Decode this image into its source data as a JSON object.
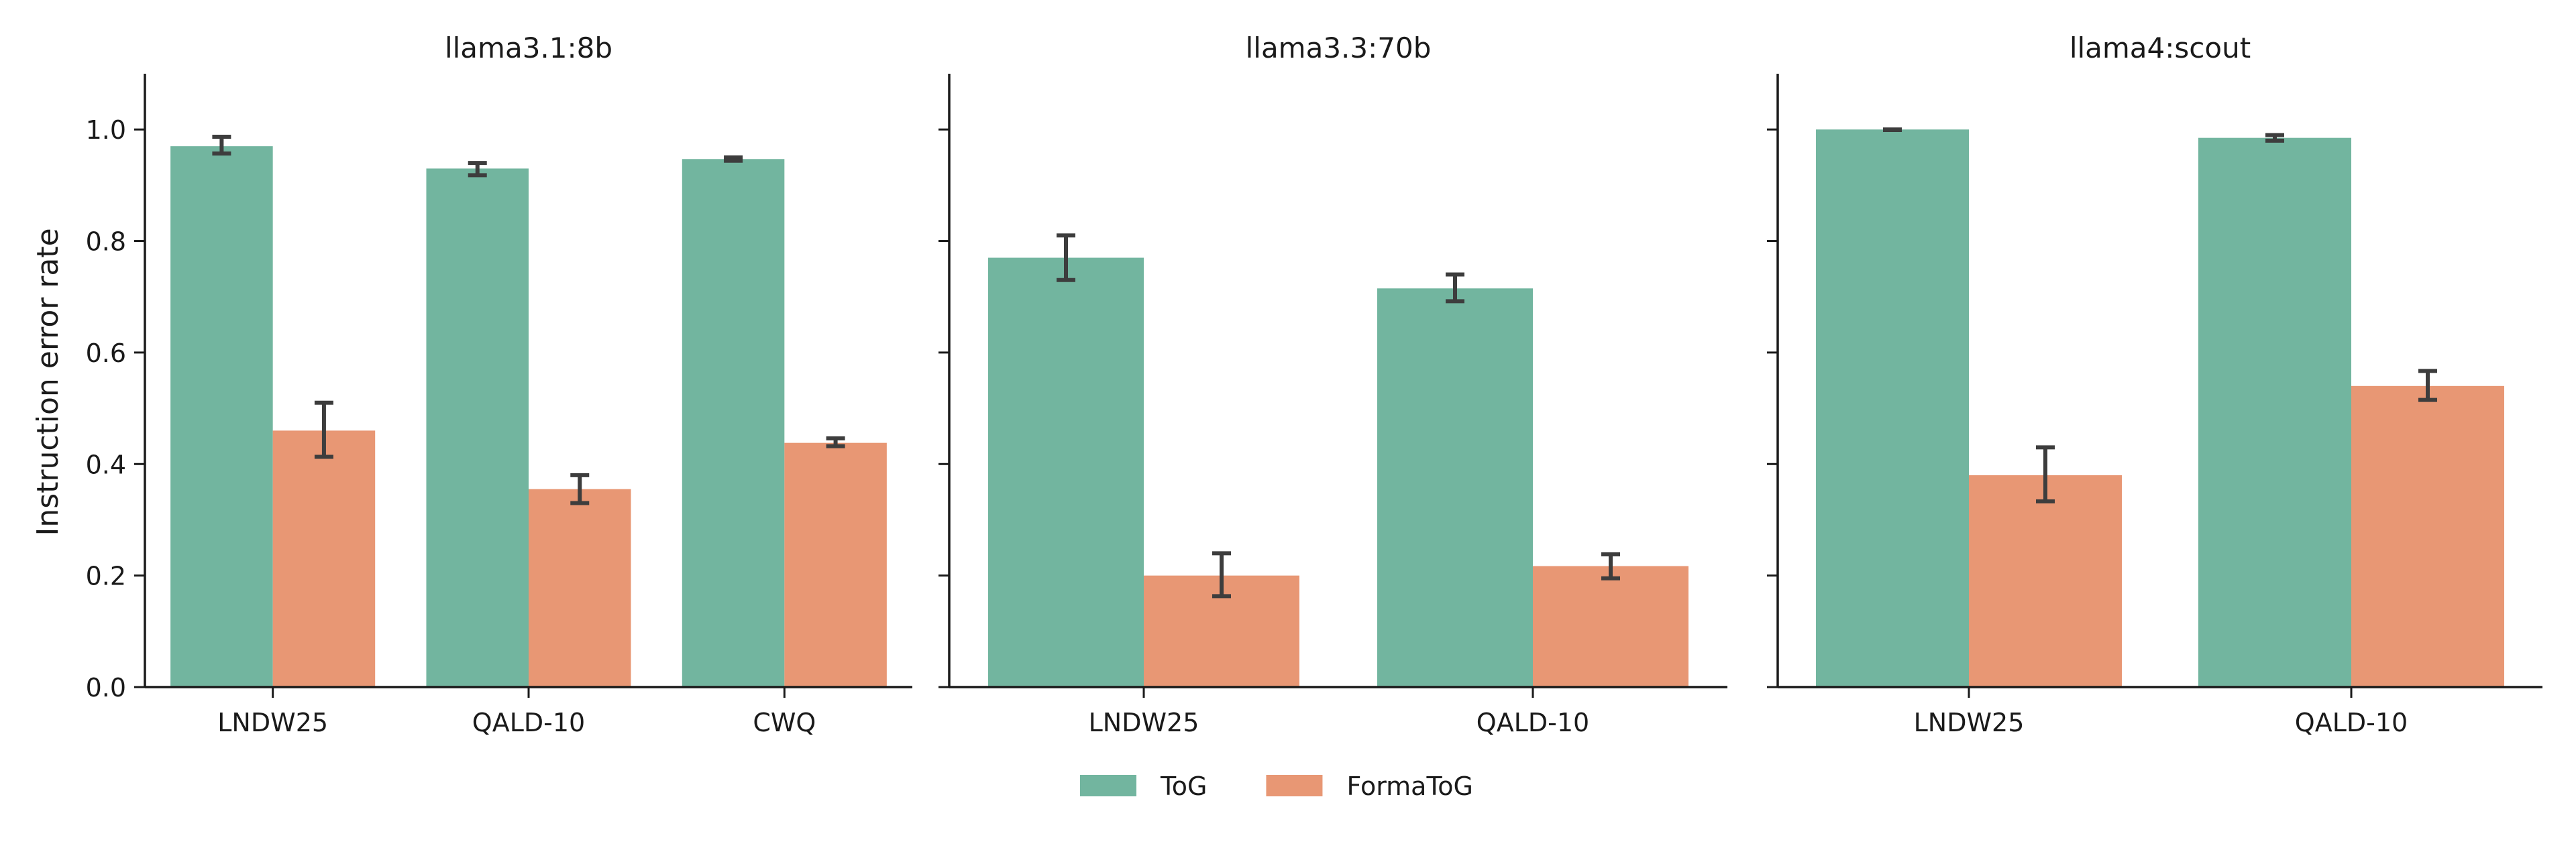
{
  "figure": {
    "ylabel": "Instruction error rate",
    "legend": {
      "placement": "bottom-center",
      "items": [
        {
          "name": "ToG",
          "color": "#72b59f"
        },
        {
          "name": "FormaToG",
          "color": "#e89774"
        }
      ]
    }
  },
  "chart_data": [
    {
      "type": "bar",
      "title": "llama3.1:8b",
      "categories": [
        "LNDW25",
        "QALD-10",
        "CWQ"
      ],
      "ylim": [
        0,
        1.1
      ],
      "yticks": [
        "0.0",
        "0.2",
        "0.4",
        "0.6",
        "0.8",
        "1.0"
      ],
      "show_ytick_labels": true,
      "series": [
        {
          "name": "ToG",
          "color": "#72b59f",
          "values": [
            0.97,
            0.93,
            0.947
          ],
          "err_low": [
            0.957,
            0.918,
            0.944
          ],
          "err_high": [
            0.987,
            0.94,
            0.95
          ]
        },
        {
          "name": "FormaToG",
          "color": "#e89774",
          "values": [
            0.46,
            0.355,
            0.438
          ],
          "err_low": [
            0.413,
            0.33,
            0.432
          ],
          "err_high": [
            0.51,
            0.38,
            0.446
          ]
        }
      ]
    },
    {
      "type": "bar",
      "title": "llama3.3:70b",
      "categories": [
        "LNDW25",
        "QALD-10"
      ],
      "ylim": [
        0,
        1.1
      ],
      "yticks": [
        "0.0",
        "0.2",
        "0.4",
        "0.6",
        "0.8",
        "1.0"
      ],
      "show_ytick_labels": false,
      "series": [
        {
          "name": "ToG",
          "color": "#72b59f",
          "values": [
            0.77,
            0.715
          ],
          "err_low": [
            0.73,
            0.692
          ],
          "err_high": [
            0.81,
            0.74
          ]
        },
        {
          "name": "FormaToG",
          "color": "#e89774",
          "values": [
            0.2,
            0.217
          ],
          "err_low": [
            0.163,
            0.195
          ],
          "err_high": [
            0.24,
            0.238
          ]
        }
      ]
    },
    {
      "type": "bar",
      "title": "llama4:scout",
      "categories": [
        "LNDW25",
        "QALD-10"
      ],
      "ylim": [
        0,
        1.1
      ],
      "yticks": [
        "0.0",
        "0.2",
        "0.4",
        "0.6",
        "0.8",
        "1.0"
      ],
      "show_ytick_labels": false,
      "series": [
        {
          "name": "ToG",
          "color": "#72b59f",
          "values": [
            1.0,
            0.985
          ],
          "err_low": [
            0.999,
            0.98
          ],
          "err_high": [
            1.0,
            0.99
          ]
        },
        {
          "name": "FormaToG",
          "color": "#e89774",
          "values": [
            0.38,
            0.54
          ],
          "err_low": [
            0.333,
            0.515
          ],
          "err_high": [
            0.43,
            0.567
          ]
        }
      ]
    }
  ]
}
